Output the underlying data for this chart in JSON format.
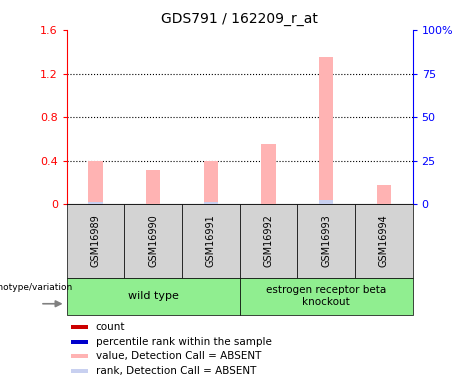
{
  "title": "GDS791 / 162209_r_at",
  "samples": [
    "GSM16989",
    "GSM16990",
    "GSM16991",
    "GSM16992",
    "GSM16993",
    "GSM16994"
  ],
  "bar_values": [
    0.4,
    0.32,
    0.4,
    0.55,
    1.35,
    0.18
  ],
  "rank_values": [
    0.02,
    0.0,
    0.02,
    0.0,
    0.04,
    0.0
  ],
  "ylim_left": [
    0,
    1.6
  ],
  "ylim_right": [
    0,
    100
  ],
  "yticks_left": [
    0,
    0.4,
    0.8,
    1.2,
    1.6
  ],
  "ytick_labels_left": [
    "0",
    "0.4",
    "0.8",
    "1.2",
    "1.6"
  ],
  "yticks_right": [
    0,
    25,
    50,
    75,
    100
  ],
  "ytick_labels_right": [
    "0",
    "25",
    "50",
    "75",
    "100%"
  ],
  "wild_type_label": "wild type",
  "knockout_label": "estrogen receptor beta\nknockout",
  "genotype_label": "genotype/variation",
  "bar_color_absent": "#ffb3b3",
  "rank_color_absent": "#c8d0f0",
  "legend_items": [
    {
      "color": "#cc0000",
      "label": "count"
    },
    {
      "color": "#0000cc",
      "label": "percentile rank within the sample"
    },
    {
      "color": "#ffb3b3",
      "label": "value, Detection Call = ABSENT"
    },
    {
      "color": "#c8d0f0",
      "label": "rank, Detection Call = ABSENT"
    }
  ],
  "wild_type_bg": "#90ee90",
  "knockout_bg": "#90ee90",
  "sample_box_bg": "#d3d3d3"
}
